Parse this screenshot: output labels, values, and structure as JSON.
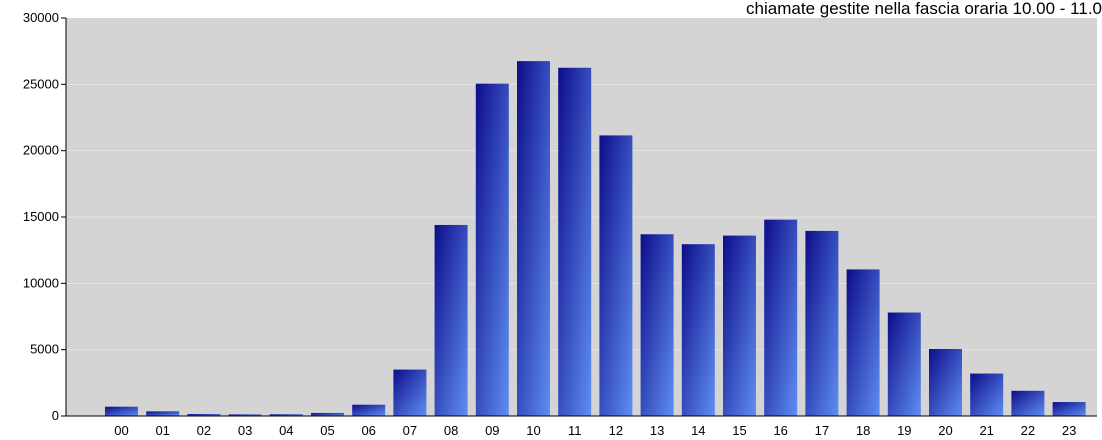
{
  "chart_data": {
    "type": "bar",
    "title": "chiamate gestite nella fascia oraria 10.00 - 11.0",
    "xlabel": "",
    "ylabel": "",
    "categories": [
      "00",
      "01",
      "02",
      "03",
      "04",
      "05",
      "06",
      "07",
      "08",
      "09",
      "10",
      "11",
      "12",
      "13",
      "14",
      "15",
      "16",
      "17",
      "18",
      "19",
      "20",
      "21",
      "22",
      "23"
    ],
    "values": [
      700,
      350,
      150,
      120,
      130,
      230,
      850,
      3500,
      14400,
      25050,
      26750,
      26250,
      21150,
      13700,
      12950,
      13600,
      14800,
      13950,
      11050,
      7800,
      5050,
      3200,
      1900,
      1050
    ],
    "ylim": [
      0,
      30000
    ],
    "yticks": [
      0,
      5000,
      10000,
      15000,
      20000,
      25000,
      30000
    ],
    "grid": true,
    "legend": "none",
    "colors": {
      "plot_background": "#d4d4d4",
      "bar_dark": "#0d0d8a",
      "bar_light": "#5f8ef2",
      "gridline": "#e4e4e4",
      "axis": "#000000"
    }
  }
}
